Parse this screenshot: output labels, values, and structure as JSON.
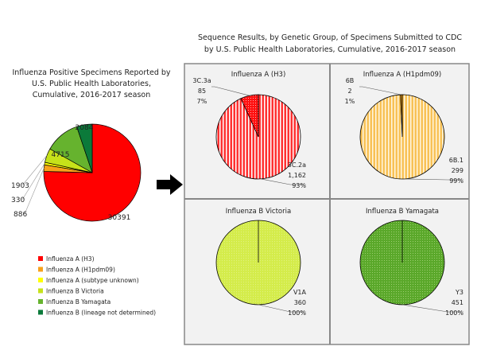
{
  "right_title": [
    "Sequence Results, by Genetic Group, of Specimens Submitted to CDC",
    "by U.S. Public Health Laboratories, Cumulative, 2016-2017 season"
  ],
  "chart_data": [
    {
      "type": "pie",
      "title": [
        "Influenza Positive Specimens Reported by",
        "U.S. Public Health Laboratories,",
        "Cumulative, 2016-2017 season"
      ],
      "categories": [
        "Influenza A (H3)",
        "Influenza A (H1pdm09)",
        "Influenza A (subtype unknown)",
        "Influenza B Victoria",
        "Influenza B Yamagata",
        "Influenza B (lineage not determined)"
      ],
      "values": [
        30391,
        886,
        330,
        1903,
        4715,
        2084
      ],
      "colors": [
        "#ff0000",
        "#f7a21b",
        "#ffff00",
        "#c6e21a",
        "#66b32e",
        "#0b7a3a"
      ],
      "legend": "bottom-left"
    },
    {
      "type": "pie",
      "title": "Influenza A (H3)",
      "slices": [
        {
          "label": "3C.2a",
          "value": 1162,
          "display": "1,162",
          "pct": "93%",
          "color": "#ff2020"
        },
        {
          "label": "3C.3a",
          "value": 85,
          "display": "85",
          "pct": "7%",
          "color": "#e81010"
        }
      ]
    },
    {
      "type": "pie",
      "title": "Influenza A (H1pdm09)",
      "slices": [
        {
          "label": "6B.1",
          "value": 299,
          "display": "299",
          "pct": "99%",
          "color": "#f7c25c"
        },
        {
          "label": "6B",
          "value": 2,
          "display": "2",
          "pct": "1%",
          "color": "#d98a00"
        }
      ]
    },
    {
      "type": "pie",
      "title": "Influenza B Victoria",
      "slices": [
        {
          "label": "V1A",
          "value": 360,
          "display": "360",
          "pct": "100%",
          "color": "#c6e21a"
        }
      ]
    },
    {
      "type": "pie",
      "title": "Influenza B Yamagata",
      "slices": [
        {
          "label": "Y3",
          "value": 451,
          "display": "451",
          "pct": "100%",
          "color": "#66b32e"
        }
      ]
    }
  ]
}
